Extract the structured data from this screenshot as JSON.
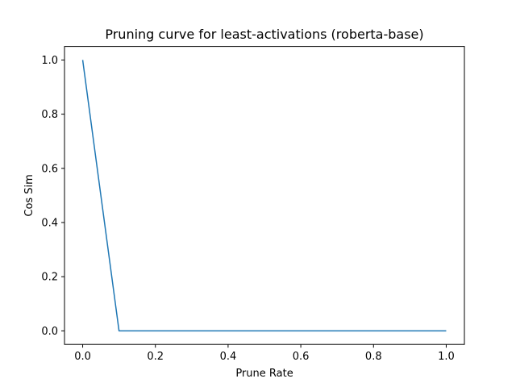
{
  "chart_data": {
    "type": "line",
    "title": "Pruning curve for least-activations (roberta-base)",
    "xlabel": "Prune Rate",
    "ylabel": "Cos Sim",
    "xlim": [
      -0.05,
      1.05
    ],
    "ylim": [
      -0.05,
      1.05
    ],
    "xticks": [
      0.0,
      0.2,
      0.4,
      0.6,
      0.8,
      1.0
    ],
    "xtick_labels": [
      "0.0",
      "0.2",
      "0.4",
      "0.6",
      "0.8",
      "1.0"
    ],
    "yticks": [
      0.0,
      0.2,
      0.4,
      0.6,
      0.8,
      1.0
    ],
    "ytick_labels": [
      "0.0",
      "0.2",
      "0.4",
      "0.6",
      "0.8",
      "1.0"
    ],
    "grid": false,
    "series": [
      {
        "color": "#1f77b4",
        "x": [
          0.0,
          0.1,
          0.2,
          0.3,
          0.4,
          0.5,
          0.6,
          0.7,
          0.8,
          0.9,
          1.0
        ],
        "y": [
          1.0,
          0.0,
          0.0,
          0.0,
          0.0,
          0.0,
          0.0,
          0.0,
          0.0,
          0.0,
          0.0
        ]
      }
    ]
  }
}
